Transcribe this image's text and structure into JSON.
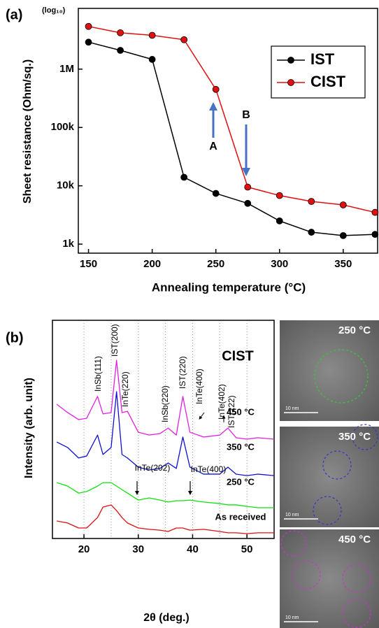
{
  "chart_data": [
    {
      "type": "line",
      "panel_label": "(a)",
      "y_scale_label": "(log₁₀)",
      "x_label": "Annealing temperature (°C)",
      "y_label": "Sheet resistance (Ohm/sq.)",
      "x": [
        150,
        175,
        200,
        225,
        250,
        275,
        300,
        325,
        350,
        375
      ],
      "series": [
        {
          "name": "IST",
          "color": "#000000",
          "values": [
            2900000,
            2100000,
            1470000,
            14000,
            7400,
            5000,
            2500,
            1600,
            1400,
            1470
          ]
        },
        {
          "name": "CIST",
          "color": "#e01010",
          "values": [
            5400000,
            4200000,
            3800000,
            3200000,
            450000,
            9500,
            6800,
            5400,
            4700,
            3500
          ]
        }
      ],
      "xlim": [
        142,
        377
      ],
      "xticks": [
        150,
        200,
        250,
        300,
        350
      ],
      "ylim": [
        700,
        11000000
      ],
      "log_y": true,
      "yticks": [
        {
          "value": 1000,
          "label": "1k"
        },
        {
          "value": 10000,
          "label": "10k"
        },
        {
          "value": 100000,
          "label": "100k"
        },
        {
          "value": 1000000,
          "label": "1M"
        }
      ],
      "legend": "upper right",
      "annotations": [
        "A",
        "B"
      ]
    },
    {
      "type": "line",
      "panel_label": "(b)",
      "x_label": "2θ (deg.)",
      "y_label": "Intensity (arb. unit)",
      "title": "CIST",
      "x": [
        15,
        17,
        19,
        20.5,
        22.5,
        23.5,
        25,
        26,
        27,
        28,
        30,
        32,
        34,
        35.5,
        37,
        38.2,
        39.5,
        42,
        45,
        46.5,
        48,
        50,
        52,
        55
      ],
      "series": [
        {
          "name": "450 °C",
          "color": "#e020e0",
          "values": [
            61.5,
            57.7,
            54.5,
            55.1,
            65.1,
            57.1,
            57.7,
            81.7,
            57.7,
            58.3,
            48.7,
            47.4,
            48.1,
            50.6,
            47.4,
            65.1,
            48.7,
            46.5,
            47.4,
            50.6,
            46.2,
            45.5,
            46.2,
            45.5
          ]
        },
        {
          "name": "350 °C",
          "color": "#1010d0",
          "values": [
            44.2,
            41.7,
            36.9,
            37.8,
            47.4,
            38.5,
            41.7,
            67.3,
            38.5,
            36.9,
            32.7,
            31.4,
            32.1,
            34.6,
            32.1,
            46.5,
            32.7,
            29.5,
            29.5,
            32.7,
            29.5,
            28.8,
            29.5,
            28.8
          ]
        },
        {
          "name": "250 °C",
          "color": "#10e010",
          "values": [
            25.6,
            24.0,
            20.8,
            21.5,
            24.0,
            25.6,
            25.6,
            24.0,
            22.4,
            20.8,
            17.6,
            18.6,
            17.6,
            16.7,
            17.3,
            17.3,
            17.6,
            16.7,
            16.0,
            15.4,
            15.4,
            14.7,
            14.1,
            14.1
          ]
        },
        {
          "name": "As received",
          "color": "#e01010",
          "values": [
            8.0,
            7.1,
            4.8,
            4.8,
            9.6,
            14.4,
            15.4,
            12.8,
            9.6,
            7.1,
            4.8,
            4.2,
            3.8,
            3.2,
            4.8,
            4.8,
            3.8,
            4.2,
            3.2,
            2.6,
            2.6,
            2.2,
            2.6,
            2.6
          ]
        }
      ],
      "xlim": [
        14.2,
        55
      ],
      "xticks": [
        20,
        30,
        40,
        50
      ],
      "grid_x": [
        20,
        25,
        30,
        35,
        40,
        45,
        50
      ],
      "ylim": [
        0,
        100
      ],
      "peak_labels": [
        "InSb(111)",
        "IST(200)",
        "InTe(220)",
        "InSb(220)",
        "IST(220)",
        "InTe(400)",
        "InTe(402)",
        "IST(222)",
        "InTe(202)",
        "InTe(400)"
      ]
    }
  ],
  "tem_images": [
    {
      "label": "250 °C",
      "scale_bar": "10 nm"
    },
    {
      "label": "350 °C",
      "scale_bar": "10 nm"
    },
    {
      "label": "450 °C",
      "scale_bar": "10 nm"
    }
  ]
}
